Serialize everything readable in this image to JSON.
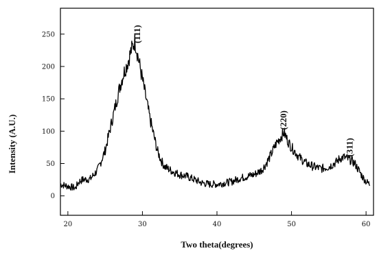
{
  "chart_data": {
    "type": "line",
    "xlabel": "Two theta(degrees)",
    "ylabel": "Intensity (A.U.)",
    "xlim": [
      19,
      61
    ],
    "ylim": [
      -30,
      290
    ],
    "x_ticks": [
      20,
      30,
      40,
      50,
      60
    ],
    "y_ticks": [
      0,
      50,
      100,
      150,
      200,
      250
    ],
    "grid": false,
    "legend": "none",
    "line_color": "#000000",
    "series": [
      {
        "x": [
          19,
          20,
          21,
          21.5,
          22,
          23,
          24,
          25,
          25.5,
          26,
          26.5,
          27,
          27.5,
          28,
          28.5,
          29,
          29.5,
          30,
          30.5,
          31,
          31.5,
          32,
          32.5,
          33,
          34,
          35,
          36,
          37,
          38,
          39,
          40,
          41,
          42,
          43,
          44,
          45,
          46,
          46.5,
          47,
          47.5,
          48,
          48.5,
          49,
          49.5,
          50,
          50.5,
          51,
          52,
          53,
          54,
          55,
          56,
          56.5,
          57,
          57.5,
          58,
          58.5,
          59,
          59.5,
          60,
          60.5
        ],
        "y": [
          18,
          15,
          12,
          22,
          25,
          26,
          40,
          70,
          95,
          120,
          145,
          170,
          190,
          205,
          225,
          240,
          210,
          180,
          150,
          120,
          95,
          70,
          55,
          45,
          38,
          33,
          30,
          25,
          20,
          18,
          18,
          20,
          22,
          27,
          30,
          33,
          40,
          48,
          58,
          70,
          82,
          90,
          98,
          85,
          75,
          68,
          60,
          50,
          45,
          42,
          45,
          52,
          58,
          60,
          57,
          55,
          50,
          40,
          30,
          22,
          18
        ]
      }
    ],
    "annotations": [
      {
        "text": "(111)",
        "x": 29.7,
        "y": 250
      },
      {
        "text": "(220)",
        "x": 49.3,
        "y": 117
      },
      {
        "text": "(311)",
        "x": 58.2,
        "y": 75
      }
    ]
  }
}
